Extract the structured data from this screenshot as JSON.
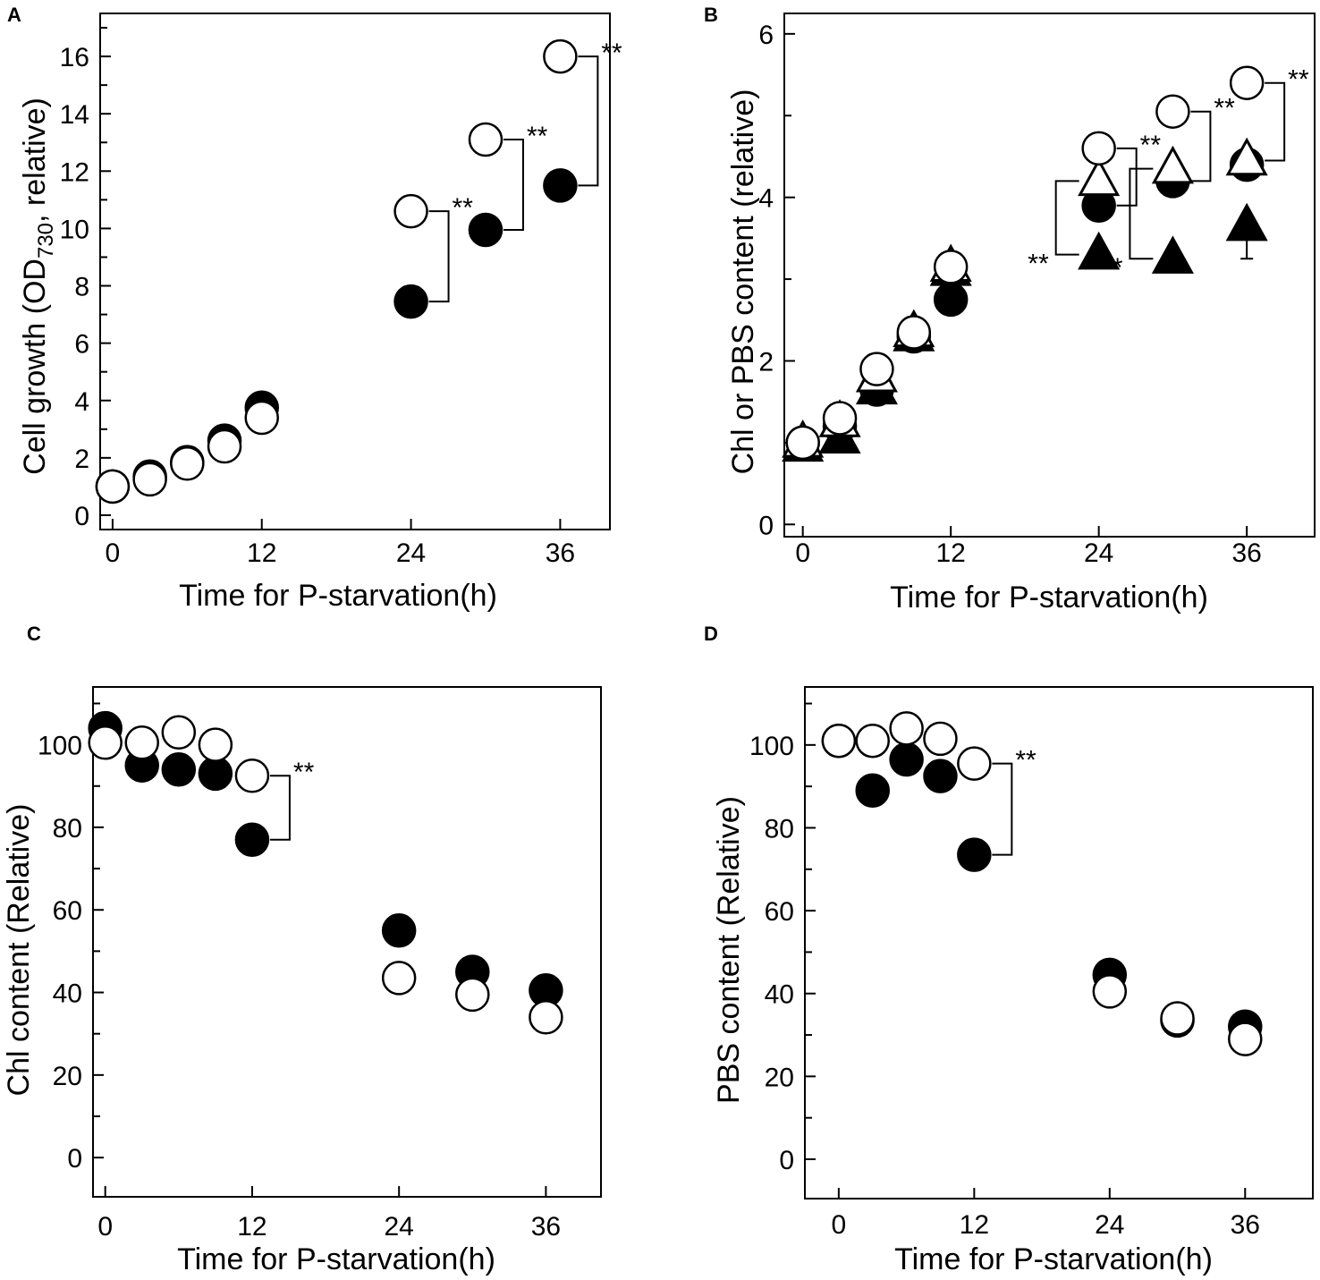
{
  "figure": {
    "panels": [
      {
        "label": "A",
        "xlabel": "Time for P-starvation(h)",
        "ylabel_main": "Cell growth (OD",
        "ylabel_sub": "730",
        "ylabel_end": ", relative)"
      },
      {
        "label": "B",
        "xlabel": "Time for P-starvation(h)",
        "ylabel": "Chl or PBS content (relative)"
      },
      {
        "label": "C",
        "xlabel": "Time for P-starvation(h)",
        "ylabel": "Chl content (Relative)"
      },
      {
        "label": "D",
        "xlabel": "Time for P-starvation(h)",
        "ylabel": "PBS content (Relative)"
      }
    ]
  },
  "chart_data": [
    {
      "id": "A",
      "type": "scatter",
      "title": "A",
      "xlabel": "Time for P-starvation(h)",
      "ylabel": "Cell growth (OD730, relative)",
      "xlim": [
        -1,
        40
      ],
      "ylim": [
        -0.5,
        17.5
      ],
      "xticks": [
        0,
        12,
        24,
        36
      ],
      "yticks": [
        0,
        2,
        4,
        6,
        8,
        10,
        12,
        14,
        16
      ],
      "yminor": [
        1,
        3,
        5,
        7,
        9,
        11,
        13,
        15,
        17
      ],
      "series": [
        {
          "name": "filled-circle",
          "marker": "circle",
          "fill": "#000000",
          "x": [
            0,
            3,
            6,
            9,
            12,
            24,
            30,
            36
          ],
          "y": [
            1.0,
            1.35,
            1.85,
            2.6,
            3.75,
            7.45,
            9.95,
            11.5
          ]
        },
        {
          "name": "open-circle",
          "marker": "circle",
          "fill": "#ffffff",
          "x": [
            0,
            3,
            6,
            9,
            12,
            24,
            30,
            36
          ],
          "y": [
            1.0,
            1.25,
            1.8,
            2.4,
            3.4,
            10.6,
            13.1,
            16.0
          ]
        }
      ],
      "significance": [
        {
          "x": 24,
          "y_low": 7.45,
          "y_high": 10.6,
          "label": "**",
          "side": "right"
        },
        {
          "x": 30,
          "y_low": 9.95,
          "y_high": 13.1,
          "label": "**",
          "side": "right"
        },
        {
          "x": 36,
          "y_low": 11.5,
          "y_high": 16.0,
          "label": "**",
          "side": "right"
        }
      ]
    },
    {
      "id": "B",
      "type": "scatter",
      "title": "B",
      "xlabel": "Time for P-starvation(h)",
      "ylabel": "Chl or PBS content (relative)",
      "xlim": [
        -1.5,
        41.5
      ],
      "ylim": [
        -0.15,
        6.25
      ],
      "xticks": [
        0,
        12,
        24,
        36
      ],
      "yticks": [
        0,
        2,
        4,
        6
      ],
      "yminor": [
        1,
        3,
        5
      ],
      "series": [
        {
          "name": "filled-triangle",
          "marker": "triangle",
          "fill": "#000000",
          "x": [
            0,
            3,
            6,
            9,
            12,
            24,
            30,
            36
          ],
          "y": [
            0.95,
            1.05,
            1.65,
            2.3,
            3.1,
            3.3,
            3.25,
            3.65
          ],
          "err": [
            0,
            0,
            0,
            0,
            0,
            0,
            0,
            0.4
          ]
        },
        {
          "name": "filled-circle",
          "marker": "circle",
          "fill": "#000000",
          "x": [
            0,
            3,
            6,
            9,
            12,
            24,
            30,
            36
          ],
          "y": [
            1.0,
            1.2,
            1.65,
            2.3,
            2.75,
            3.9,
            4.2,
            4.4
          ]
        },
        {
          "name": "open-triangle",
          "marker": "triangle",
          "fill": "#ffffff",
          "x": [
            0,
            3,
            6,
            9,
            12,
            24,
            30,
            36
          ],
          "y": [
            1.0,
            1.25,
            1.8,
            2.35,
            3.15,
            4.2,
            4.35,
            4.45
          ]
        },
        {
          "name": "open-circle",
          "marker": "circle",
          "fill": "#ffffff",
          "x": [
            0,
            3,
            6,
            9,
            12,
            24,
            30,
            36
          ],
          "y": [
            1.0,
            1.3,
            1.9,
            2.35,
            3.15,
            4.6,
            5.05,
            5.4
          ]
        }
      ],
      "significance": [
        {
          "x": 24,
          "y_low": 3.9,
          "y_high": 4.6,
          "label": "**",
          "side": "right"
        },
        {
          "x": 24,
          "y_low": 3.3,
          "y_high": 4.2,
          "label": "**",
          "side": "left"
        },
        {
          "x": 30,
          "y_low": 4.2,
          "y_high": 5.05,
          "label": "**",
          "side": "right"
        },
        {
          "x": 30,
          "y_low": 3.25,
          "y_high": 4.35,
          "label": "**",
          "side": "left"
        },
        {
          "x": 36,
          "y_low": 4.45,
          "y_high": 5.4,
          "label": "**",
          "side": "right"
        }
      ]
    },
    {
      "id": "C",
      "type": "scatter",
      "title": "C",
      "xlabel": "Time for P-starvation(h)",
      "ylabel": "Chl content (Relative)",
      "xlim": [
        -1,
        40.5
      ],
      "ylim": [
        -9.5,
        114
      ],
      "xticks": [
        0,
        12,
        24,
        36
      ],
      "yticks": [
        0,
        20,
        40,
        60,
        80,
        100
      ],
      "yminor": [
        10,
        30,
        50,
        70,
        90,
        110
      ],
      "series": [
        {
          "name": "filled-circle",
          "marker": "circle",
          "fill": "#000000",
          "x": [
            0,
            3,
            6,
            9,
            12,
            24,
            30,
            36
          ],
          "y": [
            104,
            95,
            94,
            93,
            77,
            55,
            45,
            40.5
          ]
        },
        {
          "name": "open-circle",
          "marker": "circle",
          "fill": "#ffffff",
          "x": [
            0,
            3,
            6,
            9,
            12,
            24,
            30,
            36
          ],
          "y": [
            100.5,
            100.5,
            103,
            100,
            92.5,
            43.5,
            39.5,
            34
          ]
        }
      ],
      "significance": [
        {
          "x": 12,
          "y_low": 77,
          "y_high": 92.5,
          "label": "**",
          "side": "right"
        }
      ]
    },
    {
      "id": "D",
      "type": "scatter",
      "title": "D",
      "xlabel": "Time for P-starvation(h)",
      "ylabel": "PBS content (Relative)",
      "xlim": [
        -3,
        42
      ],
      "ylim": [
        -9.5,
        114
      ],
      "xticks": [
        0,
        12,
        24,
        36
      ],
      "yticks": [
        0,
        20,
        40,
        60,
        80,
        100
      ],
      "yminor": [
        10,
        30,
        50,
        70,
        90,
        110
      ],
      "series": [
        {
          "name": "filled-circle",
          "marker": "circle",
          "fill": "#000000",
          "x": [
            0,
            3,
            6,
            9,
            12,
            24,
            30,
            36
          ],
          "y": [
            101,
            89,
            96.5,
            92.5,
            73.5,
            44.5,
            33.5,
            32
          ]
        },
        {
          "name": "open-circle",
          "marker": "circle",
          "fill": "#ffffff",
          "x": [
            0,
            3,
            6,
            9,
            12,
            24,
            30,
            36
          ],
          "y": [
            101,
            101,
            104,
            101.5,
            95.5,
            40.5,
            34,
            29
          ]
        }
      ],
      "significance": [
        {
          "x": 12,
          "y_low": 73.5,
          "y_high": 95.5,
          "label": "**",
          "side": "right"
        }
      ]
    }
  ]
}
